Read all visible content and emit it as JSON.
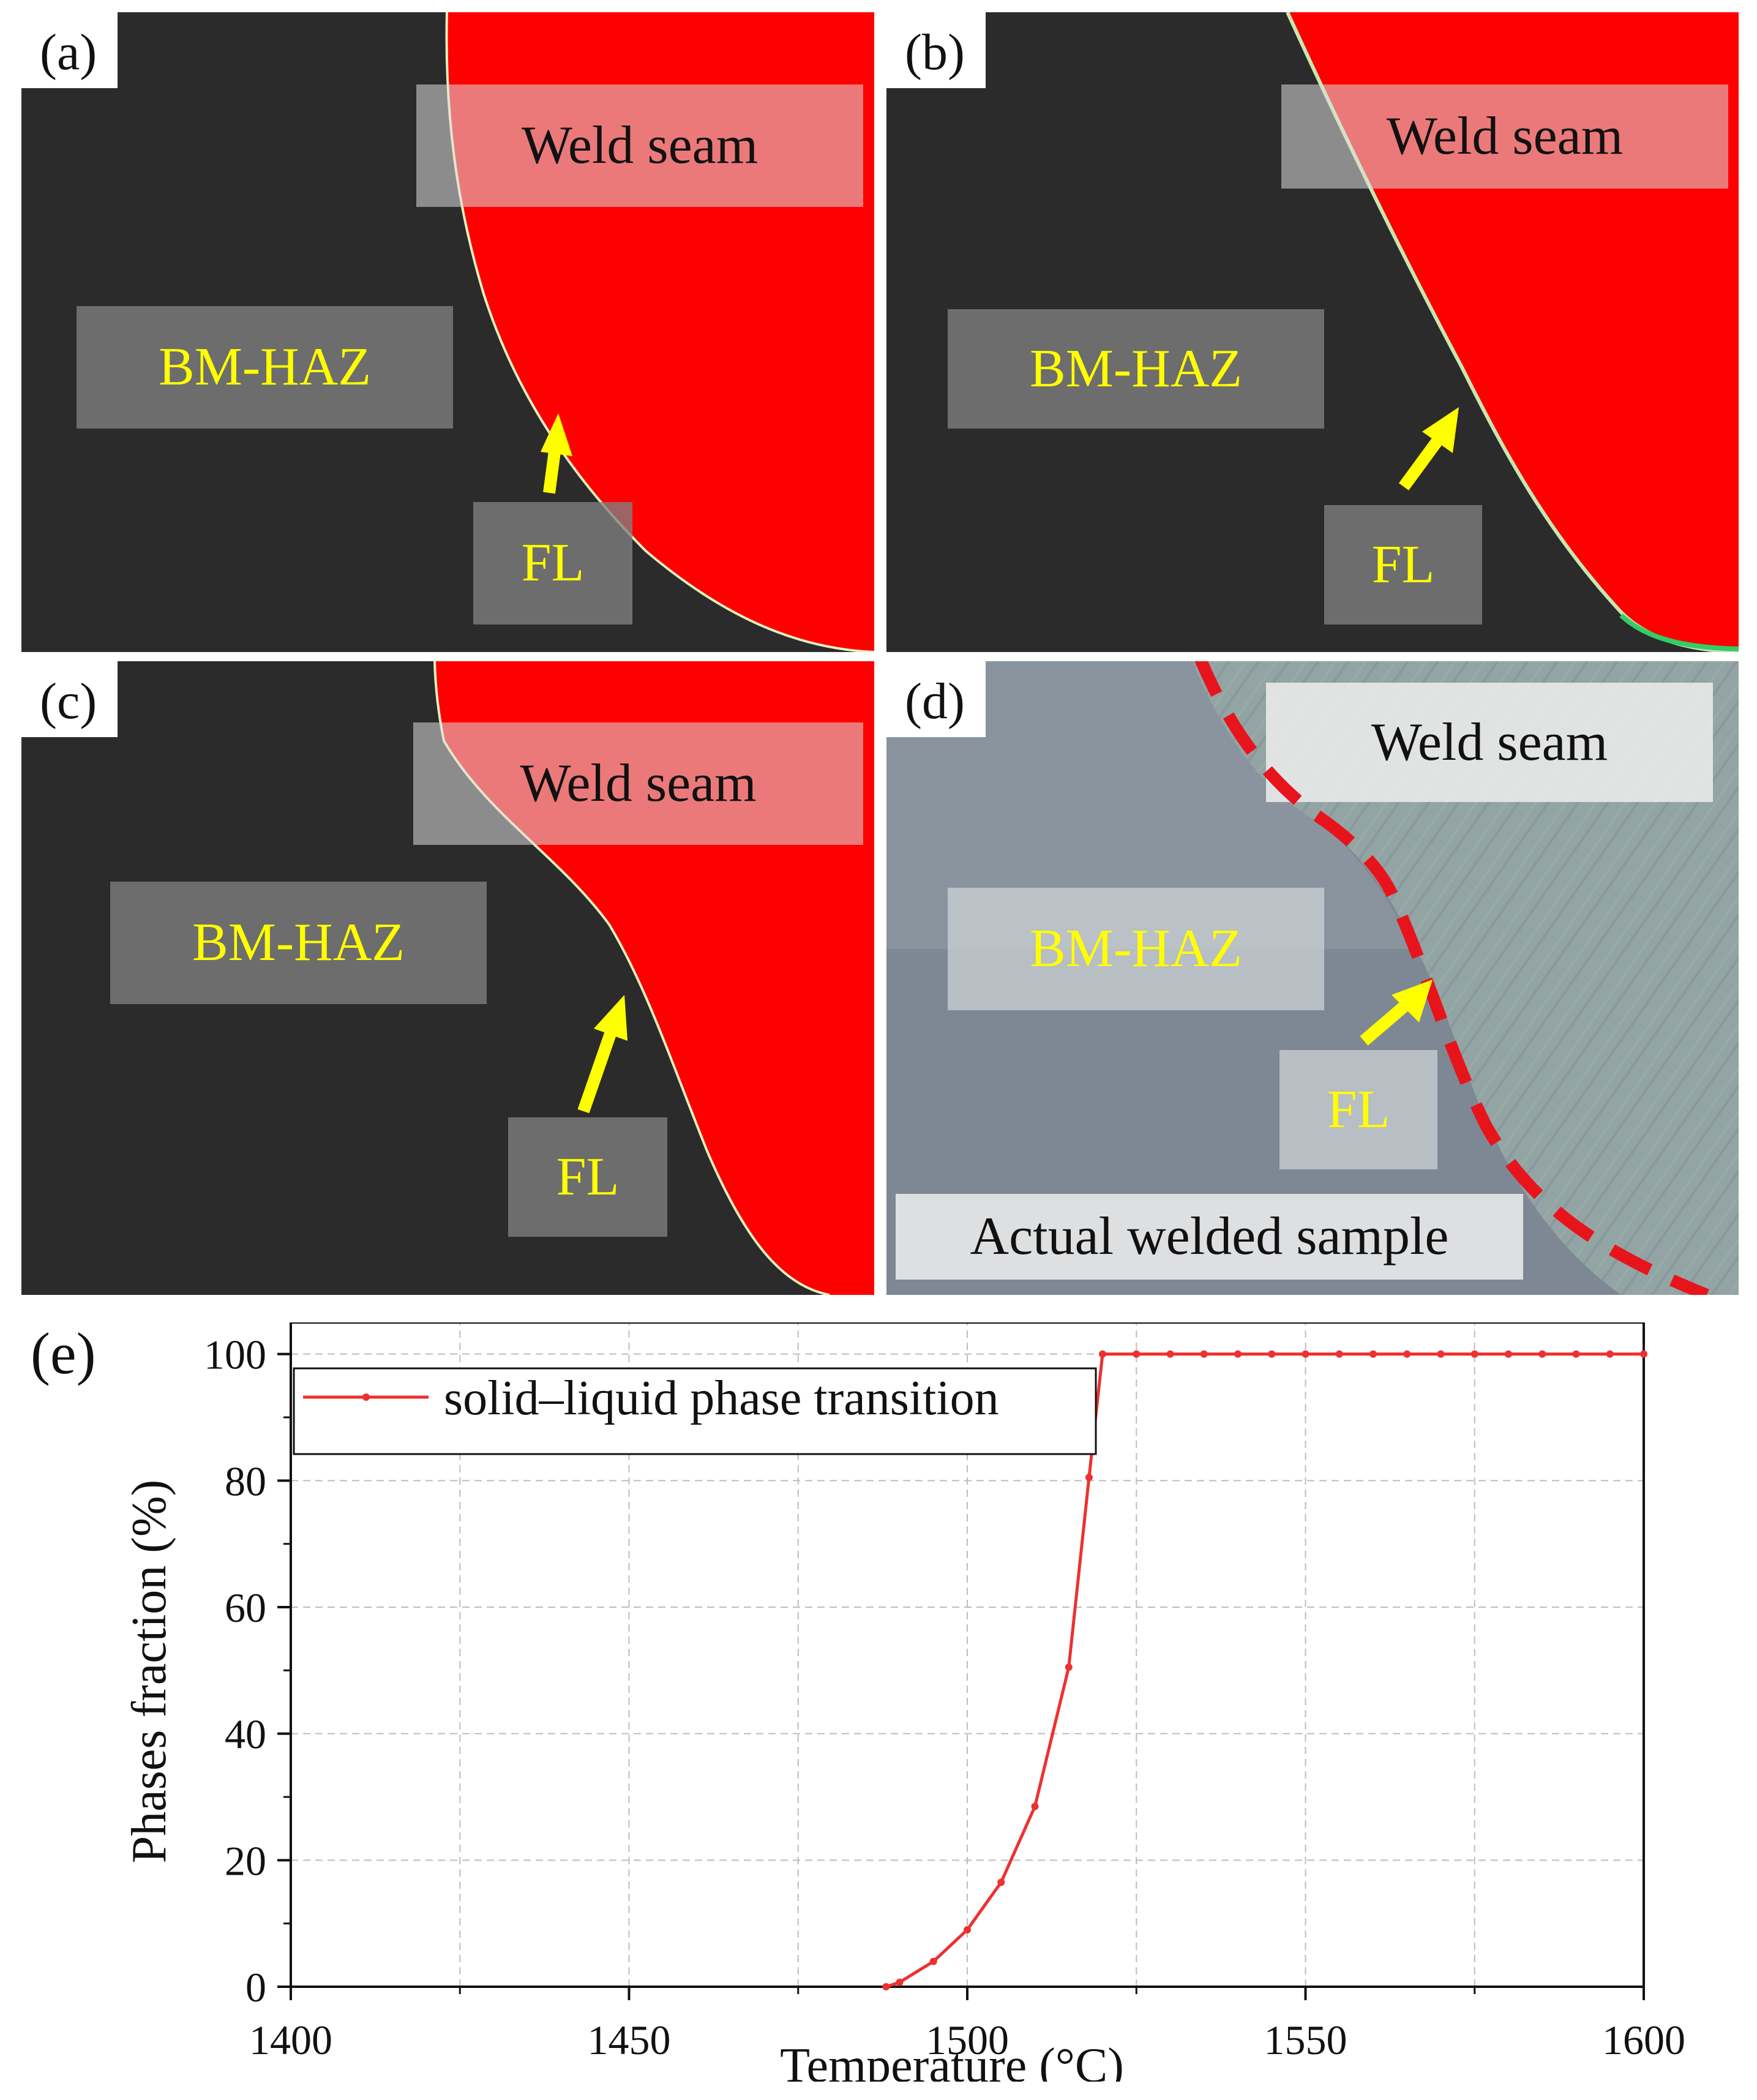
{
  "panels": [
    {
      "id": "a",
      "label": "(a)",
      "weld_seam": "Weld seam",
      "bm_haz": "BM-HAZ",
      "fl": "FL"
    },
    {
      "id": "b",
      "label": "(b)",
      "weld_seam": "Weld seam",
      "bm_haz": "BM-HAZ",
      "fl": "FL"
    },
    {
      "id": "c",
      "label": "(c)",
      "weld_seam": "Weld seam",
      "bm_haz": "BM-HAZ",
      "fl": "FL"
    },
    {
      "id": "d",
      "label": "(d)",
      "weld_seam": "Weld seam",
      "bm_haz": "BM-HAZ",
      "fl": "FL",
      "caption": "Actual welded sample"
    }
  ],
  "panel_e_label": "(e)",
  "colors": {
    "weld": "#ff0000",
    "base": "#2b2b2b",
    "arrow": "#ffff00",
    "line": "#ee3030",
    "dash": "#e8141c"
  },
  "chart_data": {
    "type": "line",
    "title": "",
    "xlabel": "Temperature (°C)",
    "ylabel": "Phases fraction (%)",
    "xlim": [
      1400,
      1600
    ],
    "ylim": [
      0,
      105
    ],
    "xticks": [
      1400,
      1450,
      1500,
      1550,
      1600
    ],
    "yticks": [
      0,
      20,
      40,
      60,
      80,
      100
    ],
    "grid": true,
    "legend_position": "top-left",
    "series": [
      {
        "name": "solid–liquid phase transition",
        "x": [
          1488,
          1490,
          1495,
          1500,
          1505,
          1510,
          1515,
          1518,
          1520,
          1525,
          1530,
          1535,
          1540,
          1545,
          1550,
          1555,
          1560,
          1565,
          1570,
          1575,
          1580,
          1585,
          1590,
          1595,
          1600
        ],
        "y": [
          0,
          0.7,
          4,
          9,
          16.5,
          28.5,
          50.5,
          80.5,
          100,
          100,
          100,
          100,
          100,
          100,
          100,
          100,
          100,
          100,
          100,
          100,
          100,
          100,
          100,
          100,
          100
        ]
      }
    ]
  }
}
